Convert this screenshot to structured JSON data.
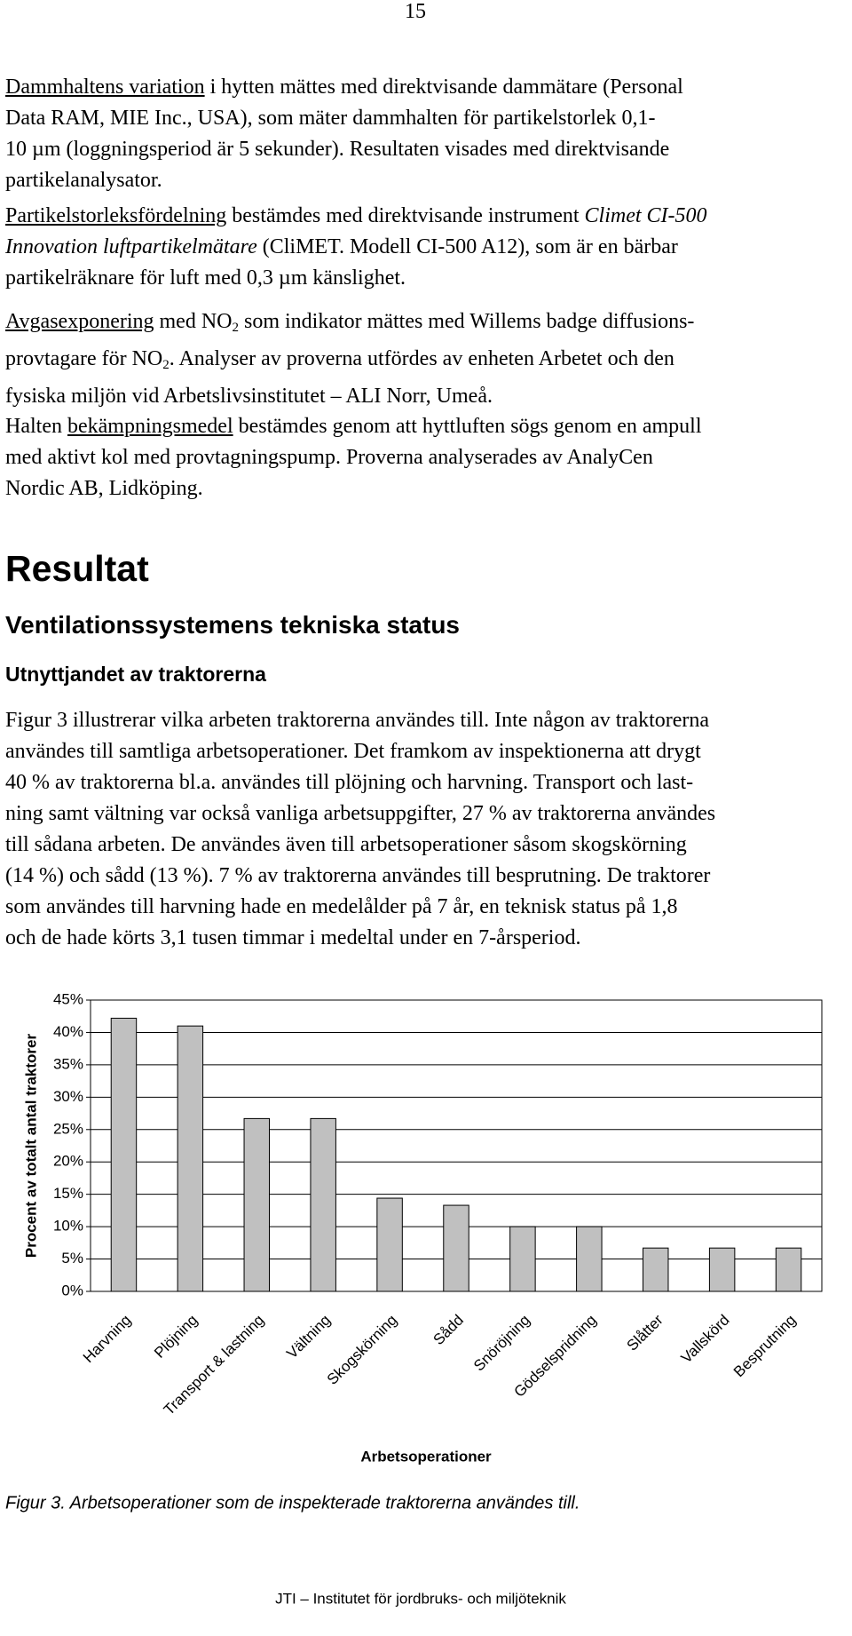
{
  "page_number": "15",
  "paragraphs": [
    {
      "lines": [
        [
          {
            "text": "Dammhaltens variation",
            "style": "u"
          },
          " i hytten mättes med direktvisande dammätare (Personal"
        ],
        [
          "Data RAM, MIE Inc., USA), som mäter dammhalten för partikelstorlek 0,1-"
        ],
        [
          "10 µm (loggningsperiod är 5 sekunder). Resultaten visades med direktvisande"
        ],
        [
          "partikelanalysator."
        ]
      ]
    },
    {
      "lines": [
        [
          {
            "text": "Partikelstorleksfördelning",
            "style": "u"
          },
          " bestämdes med direktvisande instrument ",
          {
            "text": "Climet CI-500",
            "style": "i"
          }
        ],
        [
          {
            "text": "Innovation luftpartikelmätare",
            "style": "i"
          },
          " (CliMET. Modell CI-500 A12), som är en bärbar"
        ],
        [
          "partikelräknare för luft med 0,3 µm känslighet."
        ]
      ]
    },
    {
      "lines": [
        [
          {
            "text": "Avgasexponering",
            "style": "u"
          },
          " med NO",
          {
            "text": "2",
            "style": "sub"
          },
          " som indikator mättes med Willems badge diffusions-"
        ],
        [
          "provtagare för NO",
          {
            "text": "2",
            "style": "sub"
          },
          ". Analyser av proverna utfördes av enheten Arbetet och den"
        ],
        [
          "fysiska miljön vid Arbetslivsinstitutet – ALI Norr, Umeå."
        ]
      ]
    },
    {
      "lines": [
        [
          "Halten ",
          {
            "text": "bekämpningsmedel",
            "style": "u"
          },
          " bestämdes genom att hyttluften sögs genom en ampull"
        ],
        [
          "med aktivt kol med provtagningspump. Proverna analyserades av AnalyCen"
        ],
        [
          "Nordic AB, Lidköping."
        ]
      ]
    },
    {
      "lines": [
        [
          "Figur 3 illustrerar vilka arbeten traktorerna användes till. Inte någon av traktorerna"
        ],
        [
          "användes till samtliga arbetsoperationer. Det framkom av inspektionerna att drygt"
        ],
        [
          "40 % av traktorerna bl.a. användes till plöjning och harvning. Transport och last-"
        ],
        [
          "ning samt vältning var också vanliga arbetsuppgifter, 27 % av traktorerna användes"
        ],
        [
          "till sådana arbeten. De användes även till arbetsoperationer såsom skogskörning"
        ],
        [
          "(14 %) och sådd (13 %). 7 % av traktorerna användes till besprutning. De traktorer"
        ],
        [
          "som användes till harvning hade en medelålder på 7 år, en teknisk status på 1,8"
        ],
        [
          "och de hade körts 3,1 tusen timmar i medeltal under en 7-årsperiod."
        ]
      ]
    }
  ],
  "headings": {
    "h1": "Resultat",
    "h2": "Ventilationssystemens tekniska status",
    "h3": "Utnyttjandet av traktorerna"
  },
  "chart_data": {
    "type": "bar",
    "x_label": "Arbetsoperationer",
    "y_label": "Procent av totalt antal traktorer",
    "categories": [
      "Harvning",
      "Plöjning",
      "Transport & lastning",
      "Vältning",
      "Skogskörning",
      "Sådd",
      "Snöröjning",
      "Gödselspridning",
      "Slåtter",
      "Vallskörd",
      "Besprutning"
    ],
    "values": [
      42.2,
      41,
      26.7,
      26.7,
      14.4,
      13.3,
      10,
      10,
      6.7,
      6.7,
      6.7
    ],
    "color": "#c0c0c0",
    "ylim": [
      0,
      45
    ],
    "yticks": [
      {
        "value": 0,
        "label": "0%"
      },
      {
        "value": 5,
        "label": "5%"
      },
      {
        "value": 10,
        "label": "10%"
      },
      {
        "value": 15,
        "label": "15%"
      },
      {
        "value": 20,
        "label": "20%"
      },
      {
        "value": 25,
        "label": "25%"
      },
      {
        "value": 30,
        "label": "30%"
      },
      {
        "value": 35,
        "label": "35%"
      },
      {
        "value": 40,
        "label": "40%"
      },
      {
        "value": 45,
        "label": "45%"
      }
    ],
    "grid": true
  },
  "caption": "Figur 3. Arbetsoperationer som de inspekterade traktorerna användes till.",
  "footer": "JTI – Institutet för jordbruks- och miljöteknik"
}
